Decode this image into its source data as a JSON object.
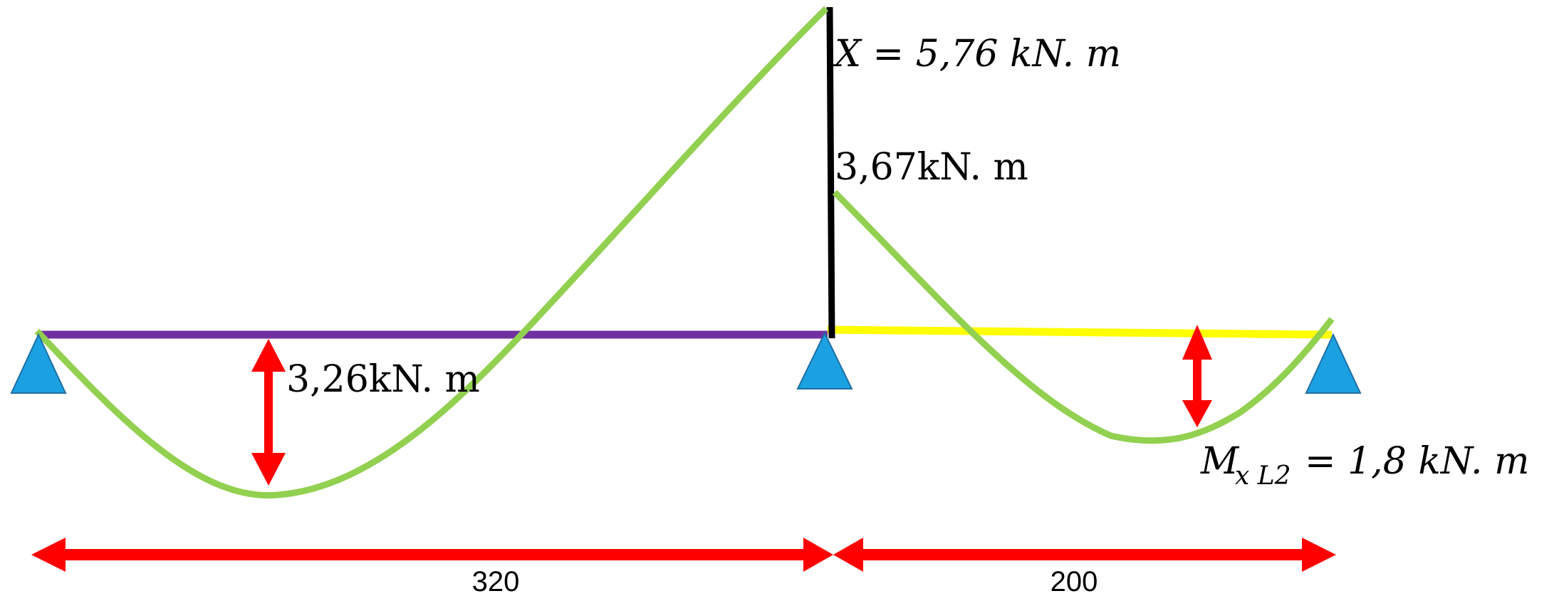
{
  "diagram": {
    "labels": {
      "support_moment": "X = 5,76 kN. m",
      "support_moment_right": "3,67kN. m",
      "span1_moment": "3,26kN. m",
      "span2_moment_symbol": "M",
      "span2_moment_subscript": "x L2",
      "span2_moment_value": "= 1,8 kN. m"
    },
    "dimensions": {
      "span1": "320",
      "span2": "200"
    }
  },
  "colors": {
    "beam_span1": "#7030A0",
    "beam_span2": "#FFFF00",
    "moment_curve": "#92D050",
    "arrows": "#FF0000",
    "support_fill": "#1BA1E2",
    "support_stroke": "#1F6FA3",
    "support_line": "#000000"
  }
}
